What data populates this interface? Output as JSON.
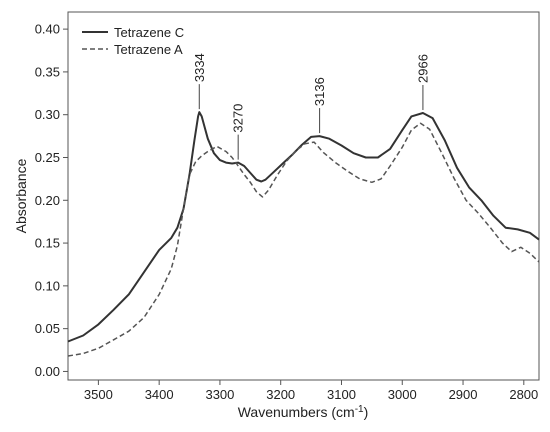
{
  "chart_data": {
    "type": "line",
    "title": "",
    "xlabel": "Wavenumbers",
    "xlabel_unit_base": "cm",
    "xlabel_unit_exp": "-1",
    "ylabel": "Absorbance",
    "xlim": [
      3550,
      2775
    ],
    "x_reversed": true,
    "ylim": [
      -0.01,
      0.42
    ],
    "x_ticks": [
      "3500",
      "3400",
      "3300",
      "3200",
      "3100",
      "3000",
      "2900",
      "2800"
    ],
    "y_ticks": [
      "0.00",
      "0.05",
      "0.10",
      "0.15",
      "0.20",
      "0.25",
      "0.30",
      "0.35",
      "0.40"
    ],
    "grid": false,
    "legend_position": "top-left",
    "series": [
      {
        "name": "Tetrazene C",
        "style": "solid",
        "color": "#333333",
        "points": [
          [
            3550,
            0.035
          ],
          [
            3525,
            0.042
          ],
          [
            3500,
            0.055
          ],
          [
            3475,
            0.072
          ],
          [
            3450,
            0.09
          ],
          [
            3425,
            0.116
          ],
          [
            3400,
            0.142
          ],
          [
            3380,
            0.156
          ],
          [
            3370,
            0.168
          ],
          [
            3360,
            0.19
          ],
          [
            3350,
            0.23
          ],
          [
            3342,
            0.27
          ],
          [
            3336,
            0.298
          ],
          [
            3334,
            0.303
          ],
          [
            3330,
            0.298
          ],
          [
            3320,
            0.272
          ],
          [
            3310,
            0.255
          ],
          [
            3300,
            0.247
          ],
          [
            3290,
            0.244
          ],
          [
            3280,
            0.243
          ],
          [
            3270,
            0.244
          ],
          [
            3260,
            0.24
          ],
          [
            3250,
            0.232
          ],
          [
            3240,
            0.224
          ],
          [
            3232,
            0.222
          ],
          [
            3225,
            0.224
          ],
          [
            3210,
            0.234
          ],
          [
            3195,
            0.244
          ],
          [
            3180,
            0.254
          ],
          [
            3165,
            0.265
          ],
          [
            3150,
            0.274
          ],
          [
            3136,
            0.275
          ],
          [
            3120,
            0.272
          ],
          [
            3100,
            0.264
          ],
          [
            3080,
            0.255
          ],
          [
            3060,
            0.25
          ],
          [
            3040,
            0.25
          ],
          [
            3020,
            0.26
          ],
          [
            3000,
            0.282
          ],
          [
            2985,
            0.298
          ],
          [
            2966,
            0.302
          ],
          [
            2950,
            0.296
          ],
          [
            2930,
            0.27
          ],
          [
            2910,
            0.238
          ],
          [
            2890,
            0.215
          ],
          [
            2870,
            0.2
          ],
          [
            2850,
            0.182
          ],
          [
            2830,
            0.168
          ],
          [
            2810,
            0.166
          ],
          [
            2790,
            0.162
          ],
          [
            2775,
            0.154
          ]
        ]
      },
      {
        "name": "Tetrazene A",
        "style": "dashed",
        "color": "#555555",
        "points": [
          [
            3550,
            0.018
          ],
          [
            3525,
            0.021
          ],
          [
            3500,
            0.027
          ],
          [
            3475,
            0.037
          ],
          [
            3450,
            0.047
          ],
          [
            3425,
            0.063
          ],
          [
            3400,
            0.09
          ],
          [
            3380,
            0.12
          ],
          [
            3370,
            0.147
          ],
          [
            3360,
            0.19
          ],
          [
            3350,
            0.23
          ],
          [
            3340,
            0.245
          ],
          [
            3330,
            0.252
          ],
          [
            3320,
            0.257
          ],
          [
            3305,
            0.263
          ],
          [
            3290,
            0.257
          ],
          [
            3280,
            0.25
          ],
          [
            3270,
            0.24
          ],
          [
            3260,
            0.23
          ],
          [
            3250,
            0.221
          ],
          [
            3240,
            0.21
          ],
          [
            3230,
            0.204
          ],
          [
            3220,
            0.212
          ],
          [
            3205,
            0.23
          ],
          [
            3190,
            0.246
          ],
          [
            3175,
            0.258
          ],
          [
            3160,
            0.266
          ],
          [
            3145,
            0.268
          ],
          [
            3130,
            0.256
          ],
          [
            3110,
            0.244
          ],
          [
            3090,
            0.234
          ],
          [
            3070,
            0.225
          ],
          [
            3050,
            0.221
          ],
          [
            3035,
            0.225
          ],
          [
            3020,
            0.24
          ],
          [
            3000,
            0.262
          ],
          [
            2985,
            0.282
          ],
          [
            2970,
            0.29
          ],
          [
            2955,
            0.283
          ],
          [
            2935,
            0.255
          ],
          [
            2915,
            0.226
          ],
          [
            2895,
            0.2
          ],
          [
            2875,
            0.185
          ],
          [
            2855,
            0.168
          ],
          [
            2835,
            0.15
          ],
          [
            2820,
            0.14
          ],
          [
            2805,
            0.145
          ],
          [
            2790,
            0.138
          ],
          [
            2775,
            0.128
          ]
        ]
      }
    ],
    "annotations": [
      {
        "label": "3334",
        "x": 3334,
        "peak_y": 0.303
      },
      {
        "label": "3270",
        "x": 3270,
        "peak_y": 0.244
      },
      {
        "label": "3136",
        "x": 3136,
        "peak_y": 0.275
      },
      {
        "label": "2966",
        "x": 2966,
        "peak_y": 0.302
      }
    ]
  }
}
